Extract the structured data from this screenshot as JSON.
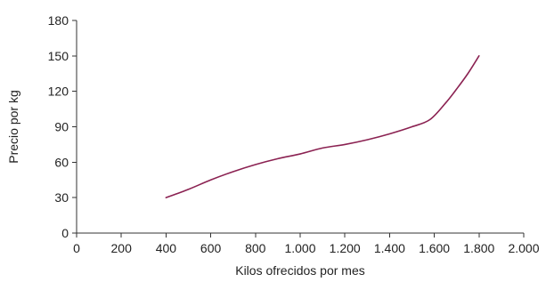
{
  "chart_data": {
    "type": "line",
    "title": "",
    "xlabel": "Kilos ofrecidos por mes",
    "ylabel": "Precio por kg",
    "xlim": [
      0,
      2000
    ],
    "ylim": [
      0,
      180
    ],
    "x_ticks": [
      0,
      200,
      400,
      600,
      800,
      1000,
      1200,
      1400,
      1600,
      1800,
      2000
    ],
    "x_tick_labels": [
      "0",
      "200",
      "400",
      "600",
      "800",
      "1.000",
      "1.200",
      "1.400",
      "1.600",
      "1.800",
      "2.000"
    ],
    "y_ticks": [
      0,
      30,
      60,
      90,
      120,
      150,
      180
    ],
    "y_tick_labels": [
      "0",
      "30",
      "60",
      "90",
      "120",
      "150",
      "180"
    ],
    "grid": false,
    "legend": "none",
    "series": [
      {
        "color": "#8b2252",
        "x": [
          400,
          500,
          600,
          700,
          800,
          900,
          1000,
          1100,
          1200,
          1300,
          1400,
          1500,
          1580,
          1650,
          1700,
          1750,
          1800
        ],
        "y": [
          30,
          37,
          45,
          52,
          58,
          63,
          67,
          72,
          75,
          79,
          84,
          90,
          96,
          110,
          122,
          135,
          150
        ]
      }
    ]
  }
}
